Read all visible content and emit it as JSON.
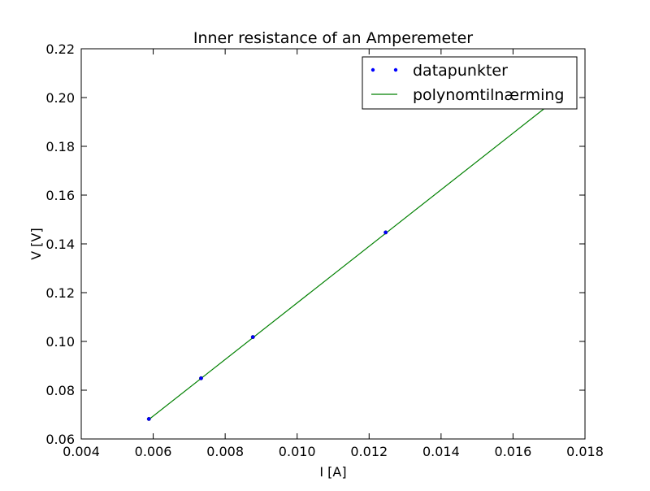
{
  "chart_data": {
    "type": "scatter",
    "title": "Inner resistance of an Amperemeter",
    "xlabel": "I [A]",
    "ylabel": "V [V]",
    "xlim": [
      0.004,
      0.018
    ],
    "ylim": [
      0.06,
      0.22
    ],
    "xticks": [
      "0.004",
      "0.006",
      "0.008",
      "0.010",
      "0.012",
      "0.014",
      "0.016",
      "0.018"
    ],
    "yticks": [
      "0.06",
      "0.08",
      "0.10",
      "0.12",
      "0.14",
      "0.16",
      "0.18",
      "0.20",
      "0.22"
    ],
    "grid": false,
    "legend_position": "top-right",
    "series": [
      {
        "name": "datapunkter",
        "kind": "points",
        "color": "#0000ff",
        "x": [
          0.00588,
          0.00733,
          0.00877,
          0.01246,
          0.017
        ],
        "y": [
          0.0682,
          0.0849,
          0.1018,
          0.1447,
          0.197
        ]
      },
      {
        "name": "polynomtilnærming",
        "kind": "line",
        "color": "#008000",
        "x": [
          0.00588,
          0.017
        ],
        "y": [
          0.068,
          0.197
        ]
      }
    ]
  }
}
